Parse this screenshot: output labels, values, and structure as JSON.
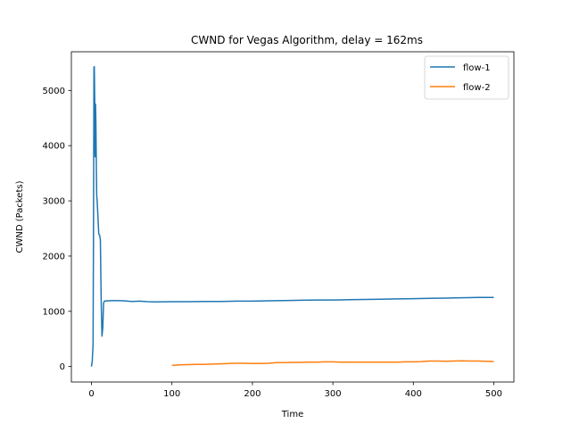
{
  "chart_data": {
    "type": "line",
    "title": "CWND for Vegas Algorithm, delay = 162ms",
    "xlabel": "Time",
    "ylabel": "CWND (Packets)",
    "xlim": [
      -25,
      525
    ],
    "ylim": [
      -280,
      5700
    ],
    "xticks": [
      0,
      100,
      200,
      300,
      400,
      500
    ],
    "yticks": [
      0,
      1000,
      2000,
      3000,
      4000,
      5000
    ],
    "grid": false,
    "legend_position": "top-right",
    "series": [
      {
        "name": "flow-1",
        "color": "#1f77b4",
        "x": [
          0,
          1,
          2,
          2.5,
          3,
          3.5,
          4,
          4.5,
          5,
          5.5,
          6,
          6.5,
          7,
          8,
          9,
          10,
          11,
          12,
          13,
          14,
          15,
          16,
          20,
          30,
          40,
          50,
          60,
          70,
          80,
          100,
          120,
          140,
          160,
          180,
          200,
          220,
          240,
          260,
          280,
          300,
          320,
          340,
          360,
          380,
          400,
          420,
          440,
          460,
          480,
          500
        ],
        "y": [
          0,
          100,
          400,
          2500,
          5420,
          5430,
          4800,
          3800,
          4750,
          4400,
          3600,
          3100,
          3000,
          2700,
          2400,
          2380,
          2300,
          1200,
          550,
          700,
          1150,
          1185,
          1190,
          1195,
          1190,
          1180,
          1185,
          1175,
          1170,
          1175,
          1175,
          1180,
          1180,
          1185,
          1185,
          1190,
          1195,
          1200,
          1205,
          1205,
          1210,
          1215,
          1220,
          1225,
          1230,
          1235,
          1240,
          1245,
          1250,
          1250
        ]
      },
      {
        "name": "flow-2",
        "color": "#ff7f0e",
        "x": [
          100,
          110,
          120,
          130,
          140,
          150,
          160,
          170,
          180,
          190,
          200,
          210,
          220,
          230,
          240,
          250,
          260,
          270,
          280,
          290,
          300,
          310,
          320,
          330,
          340,
          350,
          360,
          370,
          380,
          390,
          400,
          410,
          420,
          430,
          440,
          450,
          460,
          470,
          480,
          490,
          500
        ],
        "y": [
          20,
          30,
          35,
          40,
          40,
          45,
          50,
          55,
          60,
          60,
          55,
          55,
          60,
          70,
          70,
          75,
          75,
          80,
          80,
          85,
          85,
          80,
          80,
          80,
          80,
          80,
          80,
          80,
          80,
          85,
          85,
          90,
          100,
          100,
          95,
          100,
          105,
          100,
          100,
          95,
          90
        ]
      }
    ]
  }
}
